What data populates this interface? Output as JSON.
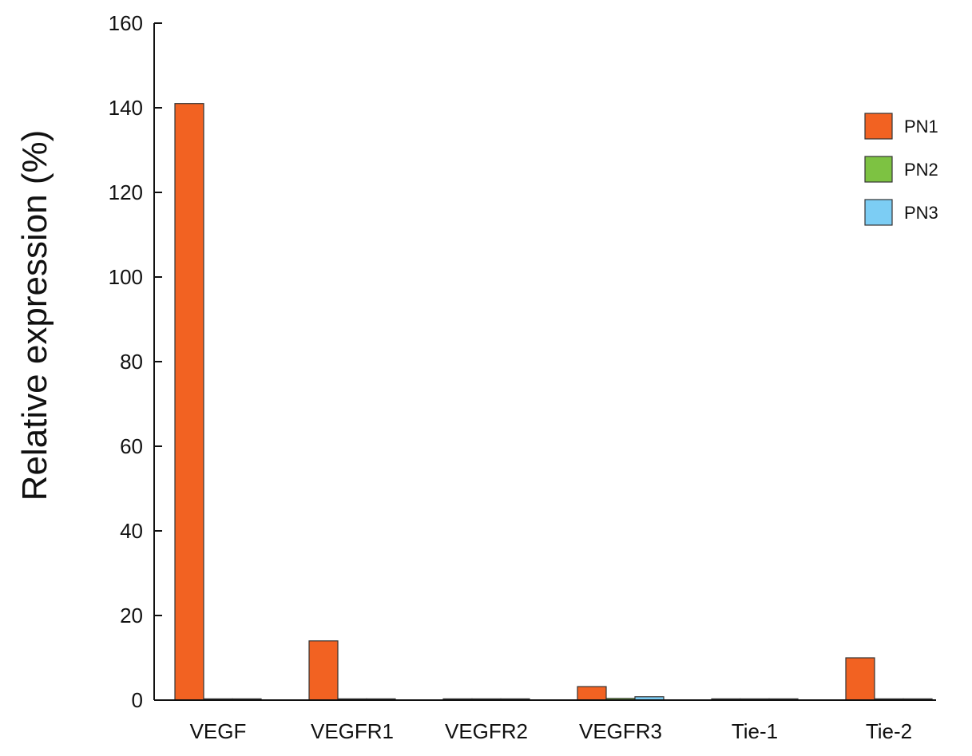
{
  "chart_data": {
    "type": "bar",
    "title": "",
    "xlabel": "",
    "ylabel": "Relative expression (%)",
    "ylim": [
      0,
      160
    ],
    "yticks": [
      0,
      20,
      40,
      60,
      80,
      100,
      120,
      140,
      160
    ],
    "grid": false,
    "legend_position": "top-right",
    "categories": [
      "VEGF",
      "VEGFR1",
      "VEGFR2",
      "VEGFR3",
      "Tie-1",
      "Tie-2"
    ],
    "series": [
      {
        "name": "PN1",
        "color": "#f26222",
        "values": [
          141,
          14,
          0.3,
          3.2,
          0.3,
          10
        ]
      },
      {
        "name": "PN2",
        "color": "#7dc242",
        "values": [
          0.3,
          0.3,
          0.3,
          0.4,
          0.3,
          0.3
        ]
      },
      {
        "name": "PN3",
        "color": "#7ccdf4",
        "values": [
          0.3,
          0.3,
          0.3,
          0.8,
          0.3,
          0.3
        ]
      }
    ]
  }
}
